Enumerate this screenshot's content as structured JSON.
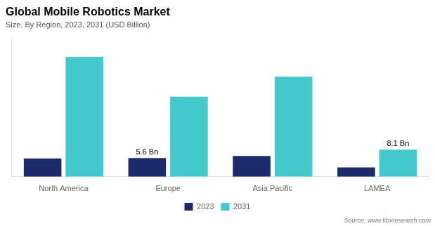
{
  "chart_data": {
    "type": "bar",
    "title": "Global Mobile Robotics Market",
    "subtitle": "Size, By Region, 2023, 2031 (USD Billion)",
    "categories": [
      "North America",
      "Europe",
      "Asia Pacific",
      "LAMEA"
    ],
    "series": [
      {
        "name": "2023",
        "color": "#1b2a6b",
        "values": [
          5.5,
          5.6,
          6.2,
          2.8
        ]
      },
      {
        "name": "2031",
        "color": "#45c8cc",
        "values": [
          36.0,
          24.0,
          30.0,
          8.1
        ]
      }
    ],
    "annotations": [
      {
        "text": "5.6 Bn",
        "category": "Europe",
        "series": "2023"
      },
      {
        "text": "8.1 Bn",
        "category": "LAMEA",
        "series": "2031"
      }
    ],
    "source": "Source: www.kbvresearch.com",
    "ylim": [
      0,
      42
    ],
    "tick_labels": "x",
    "grid": false,
    "legend": "bottom"
  }
}
